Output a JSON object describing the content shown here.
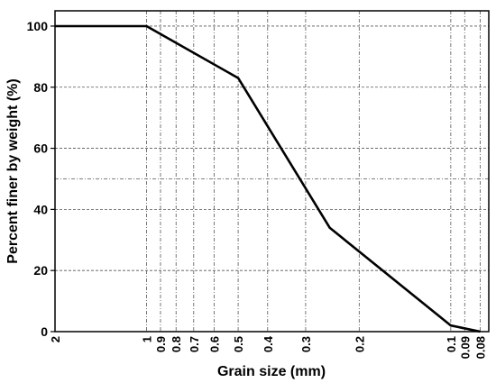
{
  "chart_data": {
    "type": "line",
    "title": "",
    "xlabel": "Grain size (mm)",
    "ylabel": "Percent finer by weight (%)",
    "x_scale": "log",
    "x_reversed": true,
    "xlim": [
      2,
      0.075
    ],
    "ylim": [
      0,
      105
    ],
    "x_ticks": [
      2,
      1,
      0.9,
      0.8,
      0.7,
      0.6,
      0.5,
      0.4,
      0.3,
      0.2,
      0.1,
      0.09,
      0.08
    ],
    "x_tick_labels": [
      "2",
      "1",
      "0.9",
      "0.8",
      "0.7",
      "0.6",
      "0.5",
      "0.4",
      "0.3",
      "0.2",
      "0.1",
      "0.09",
      "0.08"
    ],
    "y_ticks": [
      0,
      20,
      40,
      60,
      80,
      100
    ],
    "y_tick_labels": [
      "0",
      "20",
      "40",
      "60",
      "80",
      "100"
    ],
    "grid": true,
    "series": [
      {
        "x": [
          2,
          1,
          0.5,
          0.25,
          0.1,
          0.08
        ],
        "y": [
          100,
          100,
          83,
          34,
          2,
          0
        ]
      }
    ],
    "colors": {
      "line": "#000000",
      "grid": "#555555"
    }
  }
}
